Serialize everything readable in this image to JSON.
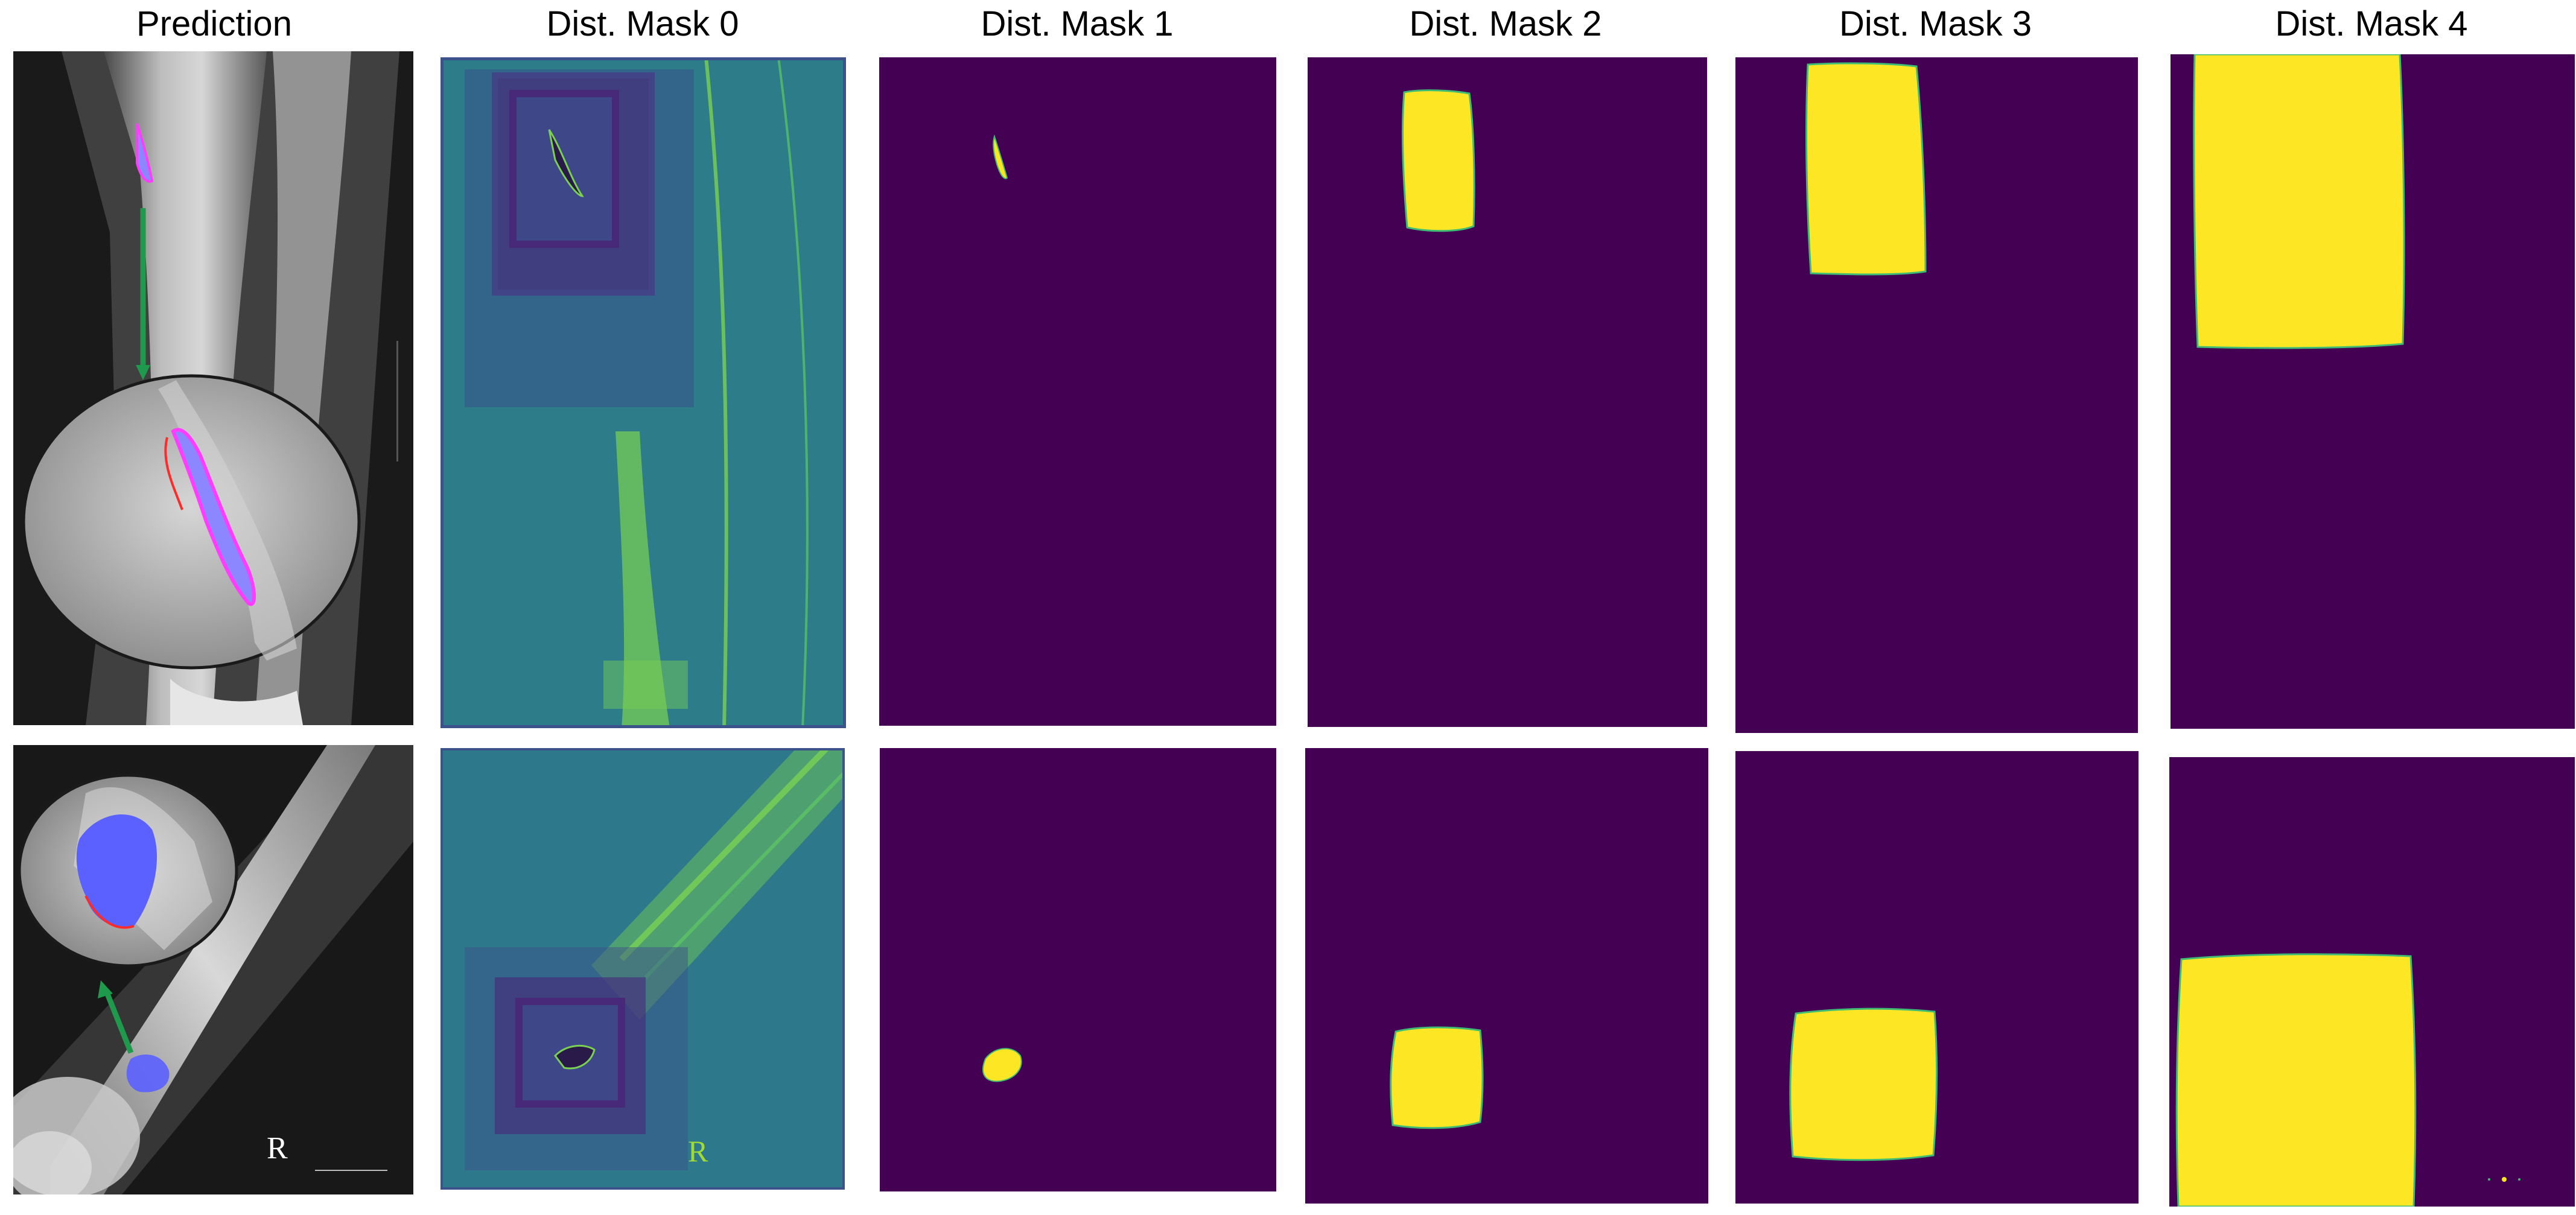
{
  "titles": {
    "prediction": "Prediction",
    "mask0": "Dist. Mask 0",
    "mask1": "Dist. Mask 1",
    "mask2": "Dist. Mask 2",
    "mask3": "Dist. Mask 3",
    "mask4": "Dist. Mask 4"
  },
  "markers": {
    "side_marker": "R"
  },
  "colors": {
    "mask_background": "#440154",
    "mask_foreground": "#fde725",
    "mask_edge": "#3fbc73",
    "distance_map_base": "#2c7a8c",
    "distance_map_high": "#7ad151",
    "distance_map_low": "#3b528b",
    "prediction_fill": "#6f6cff",
    "prediction_outline": "#ff3cff",
    "ground_truth_outline": "#ff2a2a",
    "arrow": "#1f9a4c"
  },
  "icons": {
    "arrow": "arrow-icon",
    "magnifier": "zoom-circle-icon"
  }
}
